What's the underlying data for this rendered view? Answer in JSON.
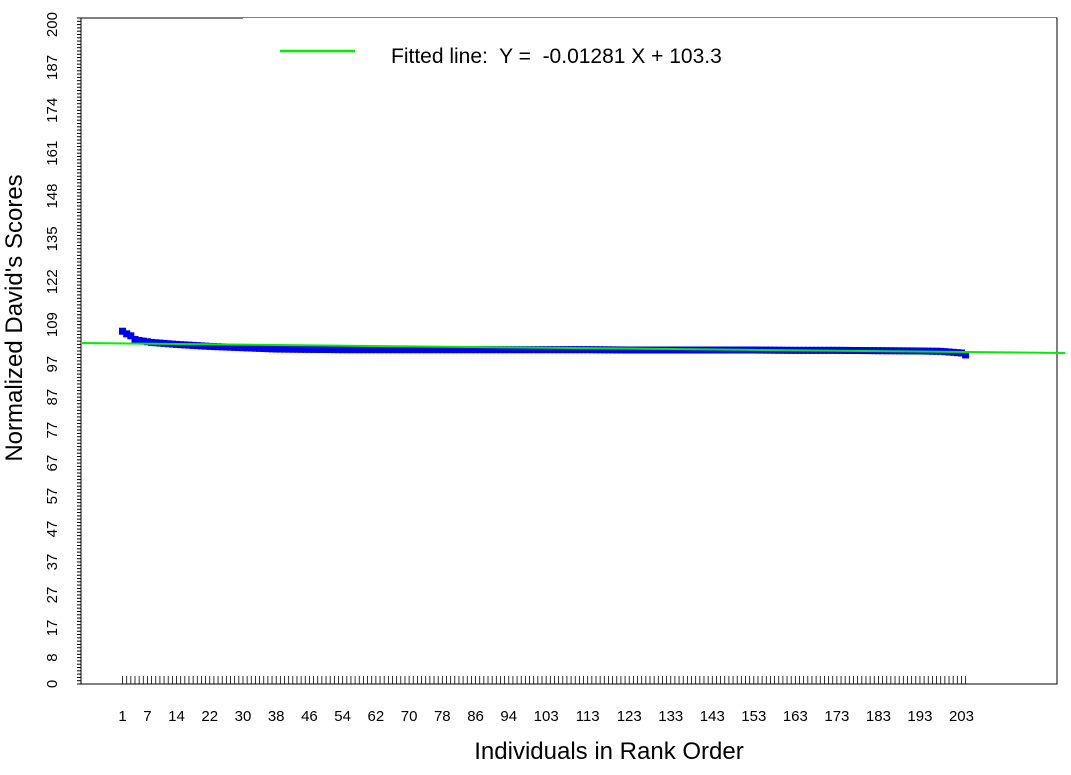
{
  "chart_data": {
    "type": "scatter",
    "xlabel": "Individuals in Rank Order",
    "ylabel": "Normalized David's Scores",
    "xlim": [
      -9,
      226
    ],
    "ylim": [
      0,
      202
    ],
    "x_tick_labels": [
      "1",
      "7",
      "14",
      "22",
      "30",
      "38",
      "46",
      "54",
      "62",
      "70",
      "78",
      "86",
      "94",
      "103",
      "113",
      "123",
      "133",
      "143",
      "153",
      "163",
      "173",
      "183",
      "193",
      "203"
    ],
    "y_tick_labels": [
      "0",
      "8",
      "17",
      "27",
      "37",
      "47",
      "57",
      "67",
      "77",
      "87",
      "97",
      "109",
      "122",
      "135",
      "148",
      "161",
      "174",
      "187",
      "200"
    ],
    "series": [
      {
        "type": "scatter",
        "marker": "square",
        "points": [
          {
            "x": 1,
            "y": 107
          },
          {
            "x": 2,
            "y": 106.2
          },
          {
            "x": 3,
            "y": 105.6
          },
          {
            "x": 4,
            "y": 104.5
          },
          {
            "x": 5,
            "y": 104.2
          },
          {
            "x": 6,
            "y": 104
          },
          {
            "x": 7,
            "y": 103.8
          },
          {
            "x": 8,
            "y": 103.6
          },
          {
            "x": 10,
            "y": 103.4
          },
          {
            "x": 12,
            "y": 103.2
          },
          {
            "x": 14,
            "y": 103
          },
          {
            "x": 18,
            "y": 102.7
          },
          {
            "x": 22,
            "y": 102.4
          },
          {
            "x": 26,
            "y": 102.2
          },
          {
            "x": 30,
            "y": 102
          },
          {
            "x": 34,
            "y": 101.8
          },
          {
            "x": 38,
            "y": 101.6
          },
          {
            "x": 46,
            "y": 101.5
          },
          {
            "x": 54,
            "y": 101.4
          },
          {
            "x": 62,
            "y": 101.4
          },
          {
            "x": 70,
            "y": 101.4
          },
          {
            "x": 78,
            "y": 101.4
          },
          {
            "x": 86,
            "y": 101.4
          },
          {
            "x": 94,
            "y": 101.4
          },
          {
            "x": 103,
            "y": 101.4
          },
          {
            "x": 113,
            "y": 101.4
          },
          {
            "x": 123,
            "y": 101.3
          },
          {
            "x": 133,
            "y": 101.3
          },
          {
            "x": 143,
            "y": 101.3
          },
          {
            "x": 153,
            "y": 101.3
          },
          {
            "x": 163,
            "y": 101.2
          },
          {
            "x": 173,
            "y": 101.2
          },
          {
            "x": 183,
            "y": 101.1
          },
          {
            "x": 193,
            "y": 101
          },
          {
            "x": 198,
            "y": 100.9
          },
          {
            "x": 201,
            "y": 100.6
          },
          {
            "x": 203,
            "y": 100.4
          },
          {
            "x": 204,
            "y": 99.8
          }
        ],
        "color": "#0000ee"
      },
      {
        "name": "Fitted line:  Y =  -0.01281 X + 103.3",
        "type": "line",
        "slope": -0.01281,
        "intercept": 103.3,
        "color": "#00ee00"
      }
    ],
    "legend_position": "top",
    "grid": false
  },
  "colors": {
    "points": "#0000ee",
    "fit_line": "#00ee00",
    "axis": "#000000"
  }
}
